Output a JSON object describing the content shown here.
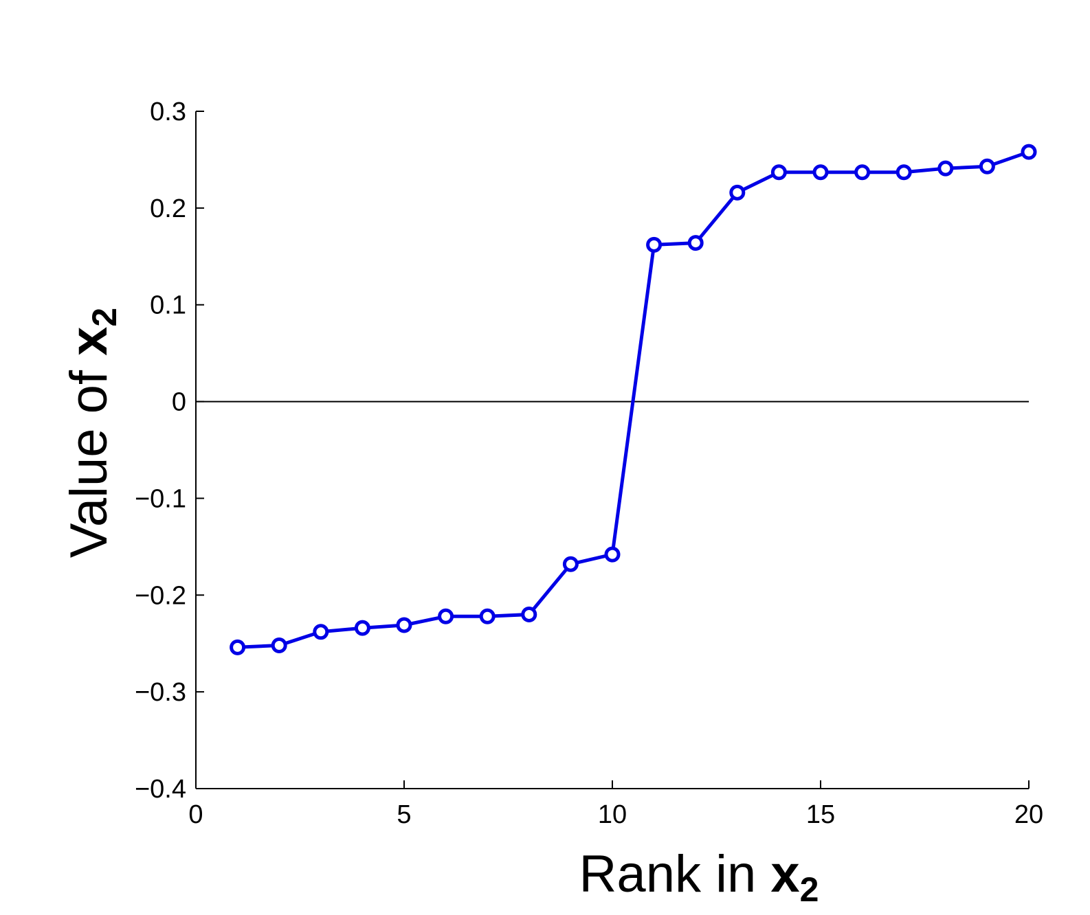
{
  "chart_data": {
    "type": "line",
    "title": "",
    "xlabel": {
      "prefix": "Rank in ",
      "var": "x",
      "sub": "2"
    },
    "ylabel": {
      "prefix": "Value of ",
      "var": "x",
      "sub": "2"
    },
    "xlim": [
      0,
      20
    ],
    "ylim": [
      -0.4,
      0.3
    ],
    "xticks": [
      0,
      5,
      10,
      15,
      20
    ],
    "xtick_labels": [
      "0",
      "5",
      "10",
      "15",
      "20"
    ],
    "yticks": [
      -0.4,
      -0.3,
      -0.2,
      -0.1,
      0,
      0.1,
      0.2,
      0.3
    ],
    "ytick_labels": [
      "−0.4",
      "−0.3",
      "−0.2",
      "−0.1",
      "0",
      "0.1",
      "0.2",
      "0.3"
    ],
    "grid": false,
    "reference_line_y": 0,
    "series": [
      {
        "color": "#0000e6",
        "marker": "circle",
        "x": [
          1,
          2,
          3,
          4,
          5,
          6,
          7,
          8,
          9,
          10,
          11,
          12,
          13,
          14,
          15,
          16,
          17,
          18,
          19,
          20
        ],
        "y": [
          -0.254,
          -0.252,
          -0.238,
          -0.234,
          -0.231,
          -0.222,
          -0.222,
          -0.22,
          -0.168,
          -0.158,
          0.162,
          0.164,
          0.216,
          0.237,
          0.237,
          0.237,
          0.237,
          0.241,
          0.243,
          0.258
        ]
      }
    ]
  }
}
